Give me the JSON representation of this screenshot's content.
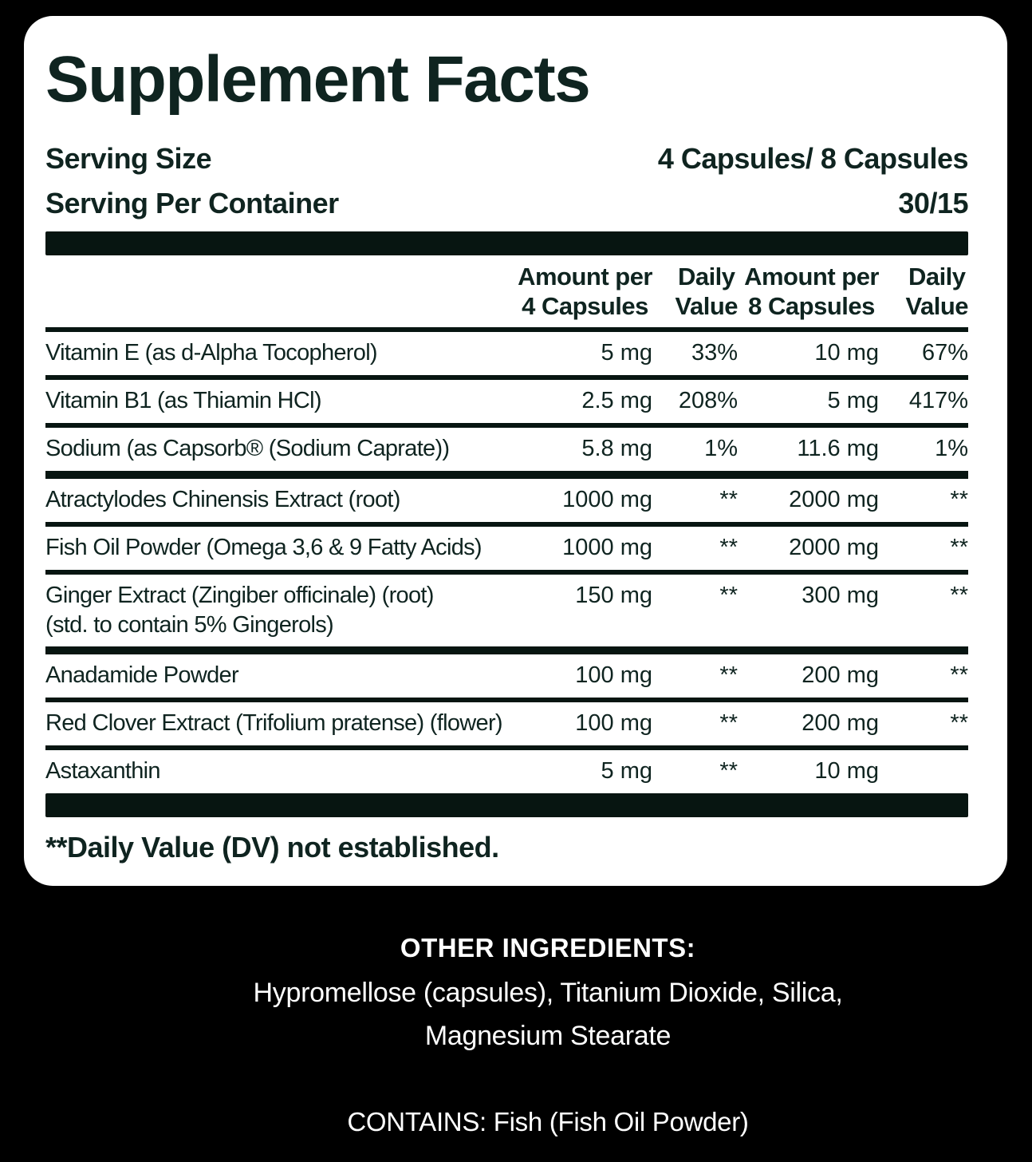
{
  "panel": {
    "title": "Supplement Facts",
    "serving_size_label": "Serving Size",
    "serving_size_value": "4 Capsules/ 8 Capsules",
    "servings_per_container_label": "Serving Per Container",
    "servings_per_container_value": "30/15",
    "footnote": "**Daily Value (DV) not established."
  },
  "table": {
    "headers": {
      "amt4": "Amount per\n4 Capsules",
      "dv1": "Daily\nValue",
      "amt8": "Amount per\n8 Capsules",
      "dv2": "Daily\nValue"
    },
    "rows": [
      {
        "name": "Vitamin E (as d-Alpha Tocopherol)",
        "amt4": "5 mg",
        "dv1": "33%",
        "amt8": "10 mg",
        "dv2": "67%",
        "sep": "thin"
      },
      {
        "name": "Vitamin B1 (as Thiamin HCl)",
        "amt4": "2.5 mg",
        "dv1": "208%",
        "amt8": "5 mg",
        "dv2": "417%",
        "sep": "thin"
      },
      {
        "name": "Sodium (as Capsorb® (Sodium Caprate))",
        "amt4": "5.8 mg",
        "dv1": "1%",
        "amt8": "11.6 mg",
        "dv2": "1%",
        "sep": "thick"
      },
      {
        "name": "Atractylodes Chinensis Extract (root)",
        "amt4": "1000 mg",
        "dv1": "**",
        "amt8": "2000 mg",
        "dv2": "**",
        "sep": "thin"
      },
      {
        "name": "Fish Oil Powder (Omega 3,6 & 9 Fatty Acids)",
        "amt4": "1000 mg",
        "dv1": "**",
        "amt8": "2000 mg",
        "dv2": "**",
        "sep": "thin"
      },
      {
        "name": "Ginger Extract (Zingiber officinale) (root)",
        "name2": "(std. to contain 5% Gingerols)",
        "amt4": "150 mg",
        "dv1": "**",
        "amt8": "300 mg",
        "dv2": "**",
        "sep": "thick"
      },
      {
        "name": "Anadamide Powder",
        "amt4": "100 mg",
        "dv1": "**",
        "amt8": "200 mg",
        "dv2": "**",
        "sep": "thin"
      },
      {
        "name": "Red Clover Extract (Trifolium pratense) (flower)",
        "amt4": "100 mg",
        "dv1": "**",
        "amt8": "200 mg",
        "dv2": "**",
        "sep": "thin"
      },
      {
        "name": "Astaxanthin",
        "amt4": "5 mg",
        "dv1": "**",
        "amt8": "10 mg",
        "dv2": "",
        "sep": "bar"
      }
    ]
  },
  "bottom": {
    "other_ingredients_label": "OTHER INGREDIENTS:",
    "other_ingredients_line1": "Hypromellose (capsules), Titanium Dioxide, Silica,",
    "other_ingredients_line2": "Magnesium Stearate",
    "contains": "CONTAINS: Fish (Fish Oil Powder)"
  },
  "colors": {
    "text": "#0f2420",
    "separator_bar": "#071511",
    "panel_background": "#ffffff",
    "page_background": "#000000",
    "bottom_text": "#ffffff"
  }
}
